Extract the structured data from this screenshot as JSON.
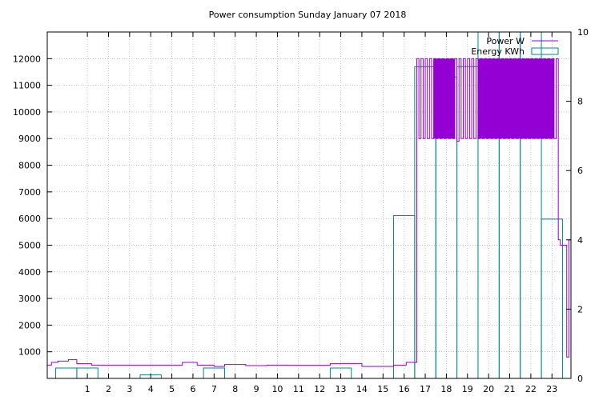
{
  "chart_data": {
    "type": "line",
    "title": "Power consumption Sunday January 07 2018",
    "xlabel": "",
    "ylabel": "",
    "grid": true,
    "legend_position": "top-right",
    "x_ticks": [
      "1",
      "2",
      "3",
      "4",
      "5",
      "6",
      "7",
      "8",
      "9",
      "10",
      "11",
      "12",
      "13",
      "14",
      "15",
      "16",
      "17",
      "18",
      "19",
      "20",
      "21",
      "22",
      "23"
    ],
    "xlim": [
      -0.9,
      23.9
    ],
    "y_left": {
      "ticks": [
        "1000",
        "2000",
        "3000",
        "4000",
        "5000",
        "6000",
        "7000",
        "8000",
        "9000",
        "10000",
        "11000",
        "12000"
      ],
      "ylim": [
        0,
        13000
      ]
    },
    "y_right": {
      "ticks": [
        "0",
        "2",
        "4",
        "6",
        "8",
        "10"
      ],
      "ylim": [
        0,
        10
      ]
    },
    "series": [
      {
        "name": "Power W",
        "color": "#9400d3",
        "axis": "left",
        "style": "steps",
        "x": [
          -0.9,
          -0.7,
          -0.4,
          0.1,
          0.2,
          0.5,
          0.7,
          1.1,
          1.2,
          2.5,
          3.5,
          3.6,
          4.5,
          5.5,
          6.2,
          7.0,
          7.5,
          8.5,
          9.5,
          10.5,
          11.5,
          12.0,
          12.5,
          13.0,
          13.4,
          14.0,
          14.5,
          15.0,
          15.5,
          15.9,
          16.1,
          16.5,
          16.6,
          16.7,
          16.8,
          16.9,
          17.0,
          17.1,
          17.2,
          17.3,
          17.4,
          17.5,
          17.6,
          17.7,
          17.8,
          17.9,
          18.0,
          18.1,
          18.2,
          18.3,
          18.4,
          18.5,
          18.6,
          18.7,
          18.8,
          18.9,
          19.0,
          19.1,
          19.2,
          19.3,
          19.4,
          19.5,
          19.6,
          19.7,
          19.8,
          19.9,
          20.0,
          20.1,
          20.2,
          20.3,
          20.4,
          20.5,
          20.6,
          20.7,
          20.8,
          20.9,
          21.0,
          21.1,
          21.2,
          21.3,
          21.4,
          21.5,
          21.6,
          21.7,
          21.8,
          21.9,
          22.0,
          22.1,
          22.2,
          22.3,
          22.4,
          22.5,
          22.6,
          22.7,
          22.8,
          22.9,
          23.0,
          23.1,
          23.2,
          23.3,
          23.4,
          23.5,
          23.6,
          23.7,
          23.8,
          23.9
        ],
        "y": [
          500,
          600,
          650,
          700,
          700,
          550,
          550,
          550,
          500,
          500,
          500,
          500,
          500,
          600,
          500,
          450,
          520,
          480,
          500,
          490,
          490,
          490,
          550,
          560,
          560,
          450,
          450,
          450,
          500,
          500,
          600,
          600,
          12000,
          9000,
          12000,
          9000,
          12000,
          9000,
          12000,
          9000,
          12000,
          9000,
          12000,
          9000,
          12000,
          9000,
          12000,
          9000,
          12000,
          9000,
          12000,
          8900,
          12000,
          9000,
          12000,
          9000,
          12000,
          9000,
          12000,
          9000,
          12000,
          9000,
          12000,
          9000,
          12000,
          9000,
          12000,
          9000,
          12000,
          9000,
          12000,
          9000,
          12000,
          9000,
          12000,
          9000,
          12000,
          9000,
          12000,
          9000,
          12000,
          9000,
          12000,
          9000,
          12000,
          9000,
          12000,
          9000,
          12000,
          9000,
          12000,
          9000,
          12000,
          9000,
          12000,
          9000,
          12000,
          9000,
          12000,
          5200,
          5000,
          5000,
          5000,
          800,
          5200,
          5200
        ]
      },
      {
        "name": "Energy KWh",
        "color": "#008b8b",
        "axis": "right",
        "style": "boxes",
        "x": [
          0,
          1,
          2,
          3,
          4,
          5,
          6,
          7,
          8,
          9,
          10,
          11,
          12,
          13,
          14,
          15,
          16,
          17,
          18,
          19,
          20,
          21,
          22,
          23
        ],
        "y": [
          0.3,
          0.3,
          0,
          0,
          0.1,
          0,
          0,
          0.3,
          0,
          0,
          0,
          0,
          0,
          0.3,
          0,
          0,
          4.7,
          9.0,
          8.7,
          9.0,
          10.0,
          10.0,
          10.0,
          4.6
        ]
      }
    ]
  }
}
